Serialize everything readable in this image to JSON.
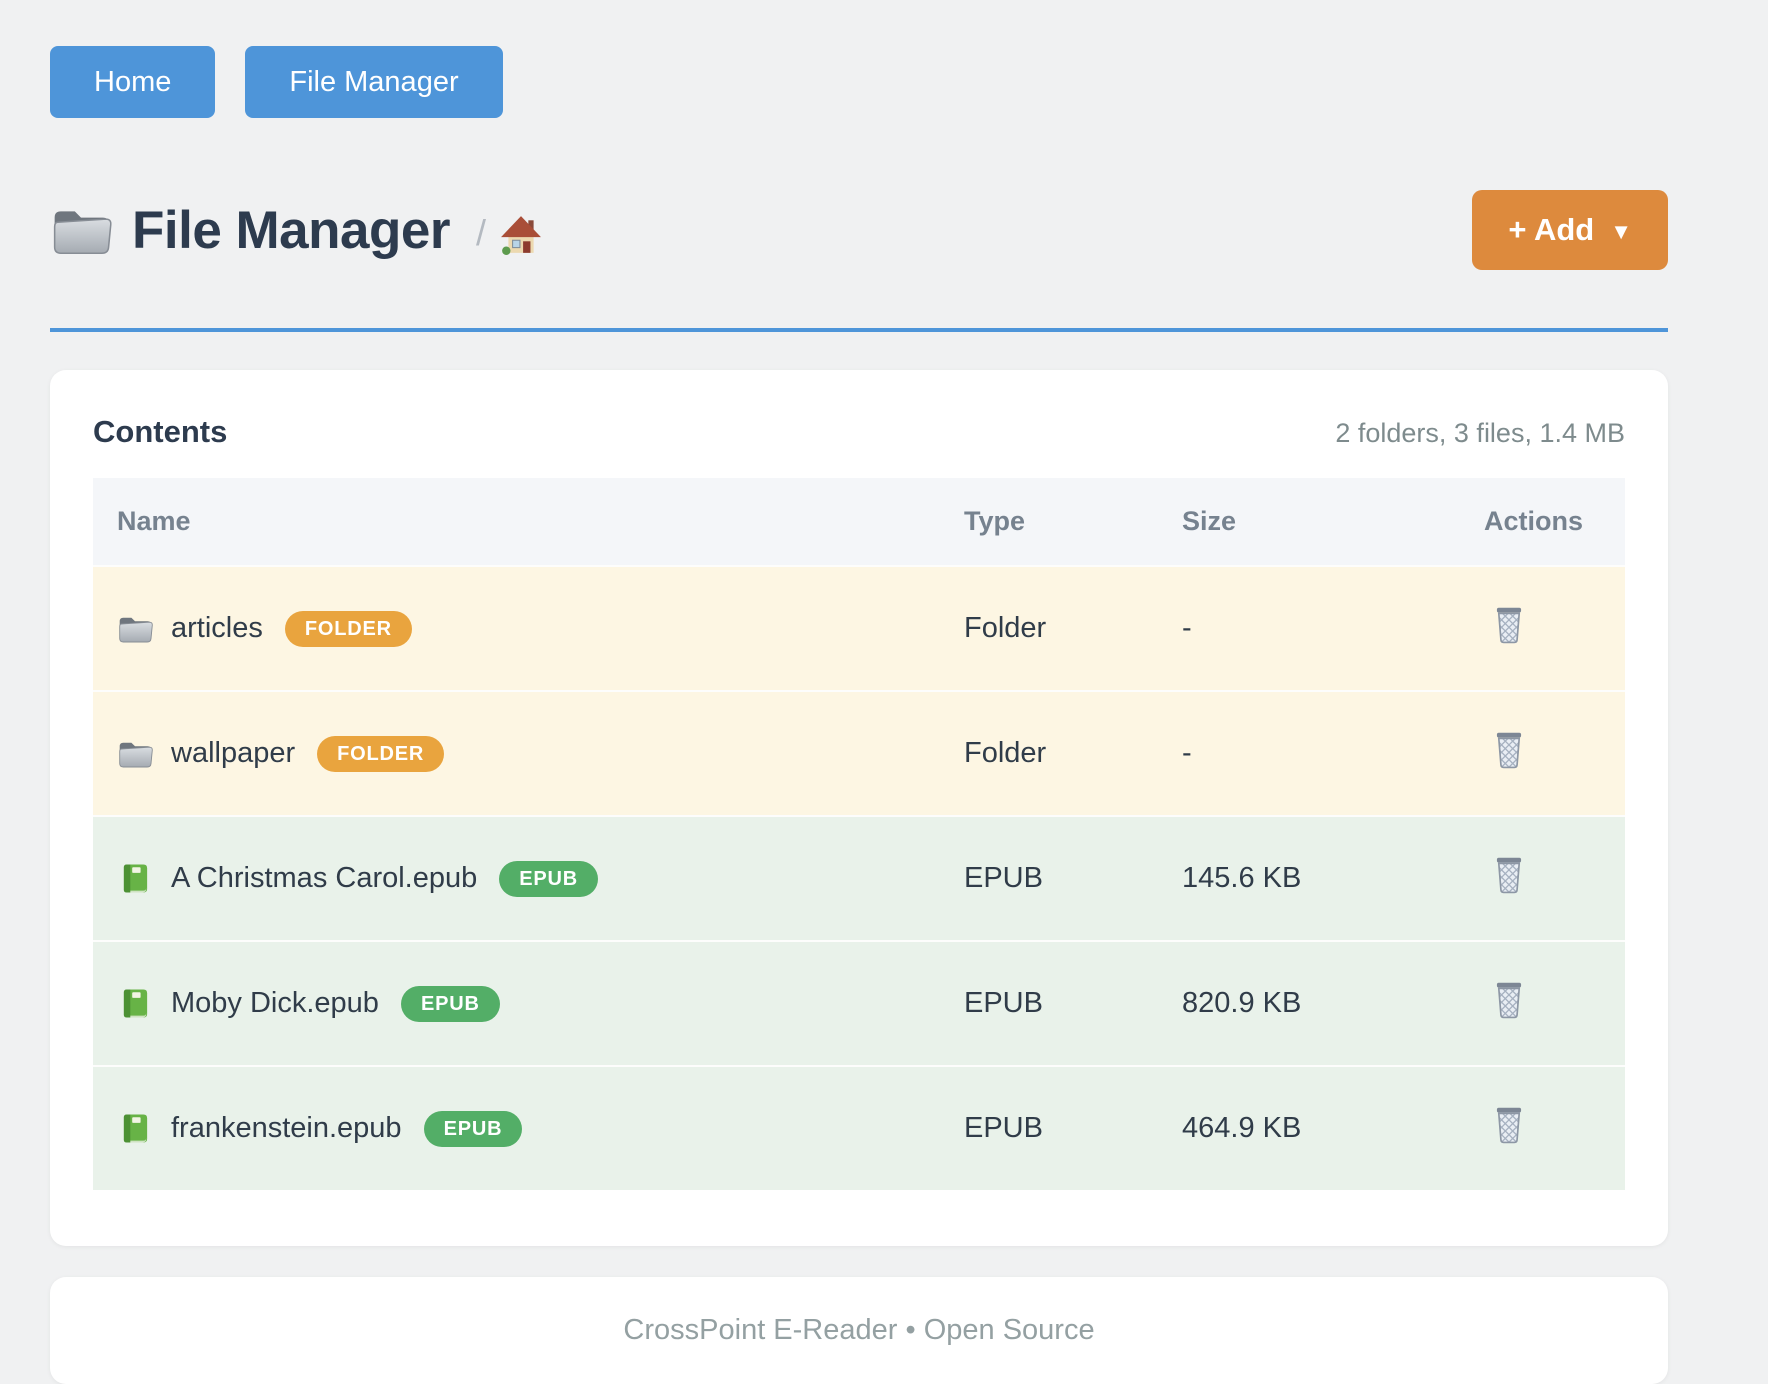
{
  "nav": {
    "buttons": [
      {
        "label": "Home"
      },
      {
        "label": "File Manager"
      }
    ]
  },
  "header": {
    "title": "File Manager",
    "title_icon": "folder-icon",
    "breadcrumb_separator": "/",
    "breadcrumb_icon": "home-icon",
    "add_button": {
      "label": "+ Add",
      "caret": "▼"
    }
  },
  "contents": {
    "heading": "Contents",
    "summary": "2 folders, 3 files, 1.4 MB",
    "table": {
      "columns": [
        "Name",
        "Type",
        "Size",
        "Actions"
      ],
      "action_icon": "trash-icon",
      "rows": [
        {
          "kind": "folder",
          "icon": "folder-icon",
          "name": "articles",
          "badge": "FOLDER",
          "type": "Folder",
          "size": "-"
        },
        {
          "kind": "folder",
          "icon": "folder-icon",
          "name": "wallpaper",
          "badge": "FOLDER",
          "type": "Folder",
          "size": "-"
        },
        {
          "kind": "epub",
          "icon": "book-icon",
          "name": "A Christmas Carol.epub",
          "badge": "EPUB",
          "type": "EPUB",
          "size": "145.6 KB"
        },
        {
          "kind": "epub",
          "icon": "book-icon",
          "name": "Moby Dick.epub",
          "badge": "EPUB",
          "type": "EPUB",
          "size": "820.9 KB"
        },
        {
          "kind": "epub",
          "icon": "book-icon",
          "name": "frankenstein.epub",
          "badge": "EPUB",
          "type": "EPUB",
          "size": "464.9 KB"
        }
      ]
    }
  },
  "footer": {
    "text": "CrossPoint E-Reader • Open Source"
  },
  "colors": {
    "accent_blue": "#4e95d9",
    "accent_orange": "#dd8a3d",
    "badge_folder": "#e9a43e",
    "badge_epub": "#53ae67",
    "row_folder_bg": "#fdf6e3",
    "row_epub_bg": "#e9f2ea",
    "page_bg": "#f0f1f2"
  }
}
